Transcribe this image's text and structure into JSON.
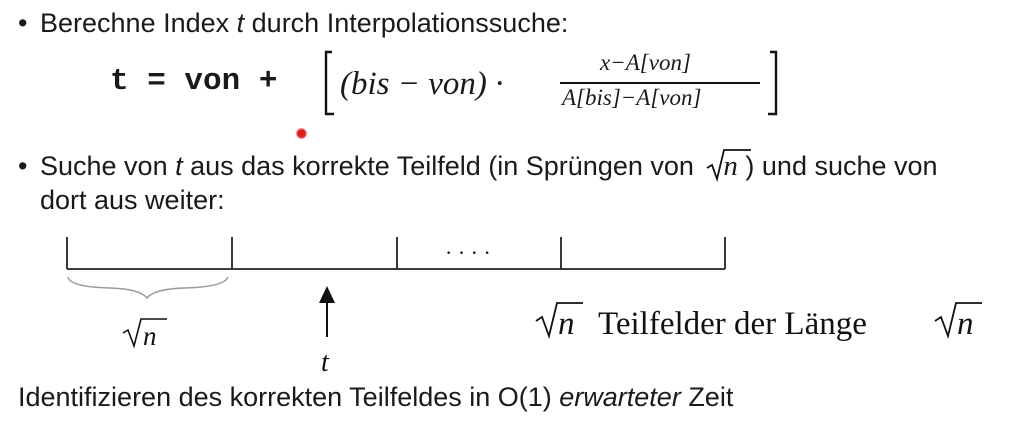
{
  "bullet_symbol": "•",
  "bullet1": {
    "text_before": "Berechne Index ",
    "var": "t",
    "text_after": " durch Interpolationssuche:"
  },
  "formula": {
    "lhs": "t = von +",
    "diff": "(bis − von) ·",
    "numerator": "x−A[von]",
    "denominator": "A[bis]−A[von]"
  },
  "bullet2": {
    "text_before": "Suche von ",
    "var": "t",
    "text_middle": " aus das korrekte Teilfeld (in Sprüngen von ",
    "sqrt_label": "n",
    "text_after": " ) und suche von",
    "line2": "dort aus weiter:"
  },
  "diagram": {
    "dots": "· · · ·",
    "brace_label": "n",
    "arrow_label": "t",
    "caption_sqrt": "n",
    "caption_text": "Teilfelder der Länge",
    "caption_sqrt2": "n"
  },
  "footer": {
    "text_before": "Identifizieren des korrekten Teilfeldes in O(1) ",
    "italic": "erwarteter",
    "text_after": " Zeit"
  }
}
